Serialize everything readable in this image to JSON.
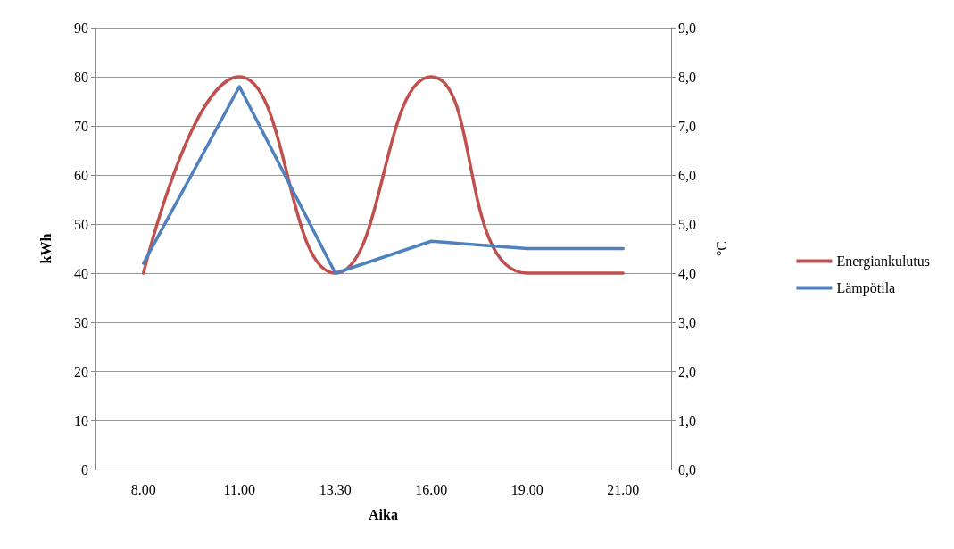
{
  "chart_data": {
    "type": "line",
    "xlabel": "Aika",
    "ylabel": "kWh",
    "y2label": "°C",
    "categories": [
      "8.00",
      "11.00",
      "13.30",
      "16.00",
      "19.00",
      "21.00"
    ],
    "series": [
      {
        "name": "Energiankulutus",
        "color": "#c0504d",
        "values": [
          40,
          80,
          40,
          80,
          40,
          40
        ]
      },
      {
        "name": "Lämpötila",
        "color": "#4f81bd",
        "axis": "y2",
        "values": [
          4.2,
          7.8,
          4.0,
          4.65,
          4.5,
          4.5
        ]
      }
    ],
    "ylim": [
      0,
      90
    ],
    "yticks": [
      0,
      10,
      20,
      30,
      40,
      50,
      60,
      70,
      80,
      90
    ],
    "y2lim": [
      0,
      9
    ],
    "y2ticks": [
      {
        "value": 0,
        "label": "0,0"
      },
      {
        "value": 1,
        "label": "1,0"
      },
      {
        "value": 2,
        "label": "2,0"
      },
      {
        "value": 3,
        "label": "3,0"
      },
      {
        "value": 4,
        "label": "4,0"
      },
      {
        "value": 5,
        "label": "5,0"
      },
      {
        "value": 6,
        "label": "6,0"
      },
      {
        "value": 7,
        "label": "7,0"
      },
      {
        "value": 8,
        "label": "8,0"
      },
      {
        "value": 9,
        "label": "9,0"
      }
    ],
    "grid": "y",
    "legend": "right",
    "marker": "none",
    "line_style": "solid"
  }
}
